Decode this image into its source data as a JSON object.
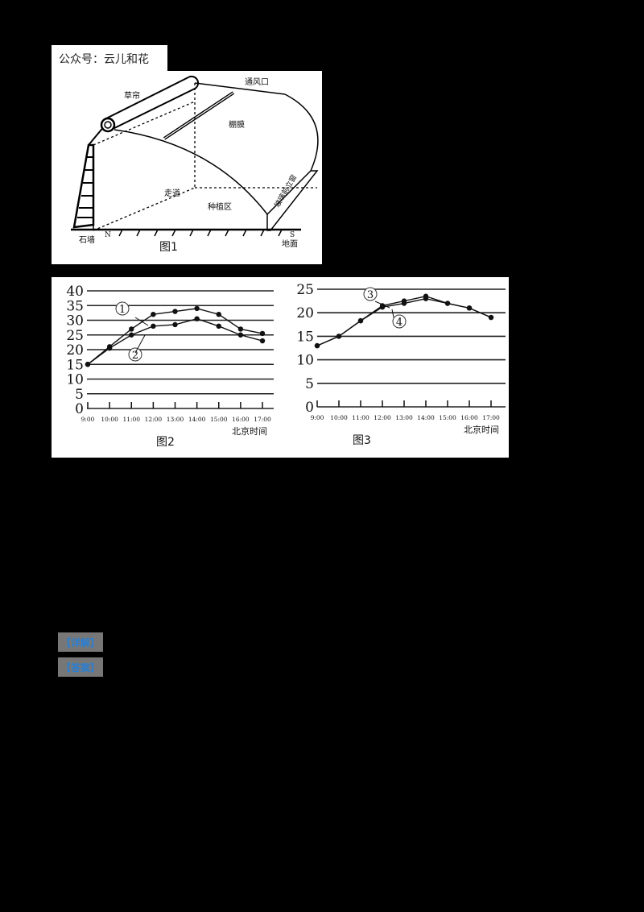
{
  "watermark": {
    "text": "公众号：云儿和花"
  },
  "figure1": {
    "caption": "图1",
    "labels": {
      "straw_curtain": "草帘",
      "vent": "通风口",
      "film": "棚膜",
      "aisle": "走道",
      "planting_area": "种植区",
      "glass_facade": "玻璃前立窗",
      "stone_wall": "石墙",
      "north": "N",
      "south": "S",
      "ground": "地面"
    }
  },
  "buttons": [
    {
      "label": "【详解】"
    },
    {
      "label": "【答案】"
    }
  ],
  "chart_data": [
    {
      "type": "line",
      "title": "图2",
      "xlabel": "北京时间",
      "ylabel": "",
      "ylim": [
        0,
        40
      ],
      "yticks": [
        0,
        5,
        10,
        15,
        20,
        25,
        30,
        35,
        40
      ],
      "grid": true,
      "categories": [
        "9:00",
        "10:00",
        "11:00",
        "12:00",
        "13:00",
        "14:00",
        "15:00",
        "16:00",
        "17:00"
      ],
      "series": [
        {
          "name": "①",
          "values": [
            15,
            21,
            27,
            32,
            33,
            34,
            32,
            27,
            25.5
          ]
        },
        {
          "name": "②",
          "values": [
            15,
            20.5,
            25,
            28,
            28.5,
            30.5,
            28,
            25,
            23
          ]
        }
      ]
    },
    {
      "type": "line",
      "title": "图3",
      "xlabel": "北京时间",
      "ylabel": "",
      "ylim": [
        0,
        25
      ],
      "yticks": [
        0,
        5,
        10,
        15,
        20,
        25
      ],
      "grid": true,
      "categories": [
        "9:00",
        "10:00",
        "11:00",
        "12:00",
        "13:00",
        "14:00",
        "15:00",
        "16:00",
        "17:00"
      ],
      "series": [
        {
          "name": "③",
          "values": [
            13,
            15,
            18.3,
            21.5,
            22.5,
            23.5,
            22,
            21,
            19
          ]
        },
        {
          "name": "④",
          "values": [
            13,
            15,
            18.3,
            21.2,
            22,
            23,
            22,
            21,
            19
          ]
        }
      ]
    }
  ]
}
